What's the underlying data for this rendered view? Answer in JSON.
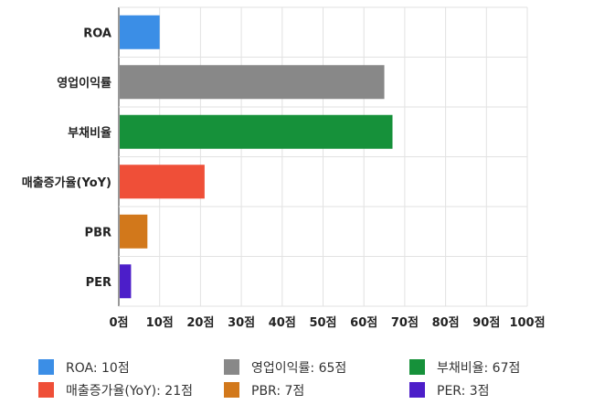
{
  "chart_data": {
    "type": "bar",
    "orientation": "horizontal",
    "title": "",
    "xlabel": "",
    "ylabel": "",
    "xlim": [
      0,
      100
    ],
    "grid": true,
    "legend_position": "bottom",
    "categories": [
      "ROA",
      "영업이익률",
      "부채비율",
      "매출증가율(YoY)",
      "PBR",
      "PER"
    ],
    "values": [
      10,
      65,
      67,
      21,
      7,
      3
    ],
    "colors": [
      "#3b8ee6",
      "#888888",
      "#16913a",
      "#ef4f38",
      "#d2781b",
      "#4c1ec9"
    ],
    "x_ticks": [
      "0점",
      "10점",
      "20점",
      "30점",
      "40점",
      "50점",
      "60점",
      "70점",
      "80점",
      "90점",
      "100점"
    ],
    "legend": [
      "ROA: 10점",
      "영업이익률: 65점",
      "부채비율: 67점",
      "매출증가율(YoY): 21점",
      "PBR: 7점",
      "PER: 3점"
    ]
  }
}
